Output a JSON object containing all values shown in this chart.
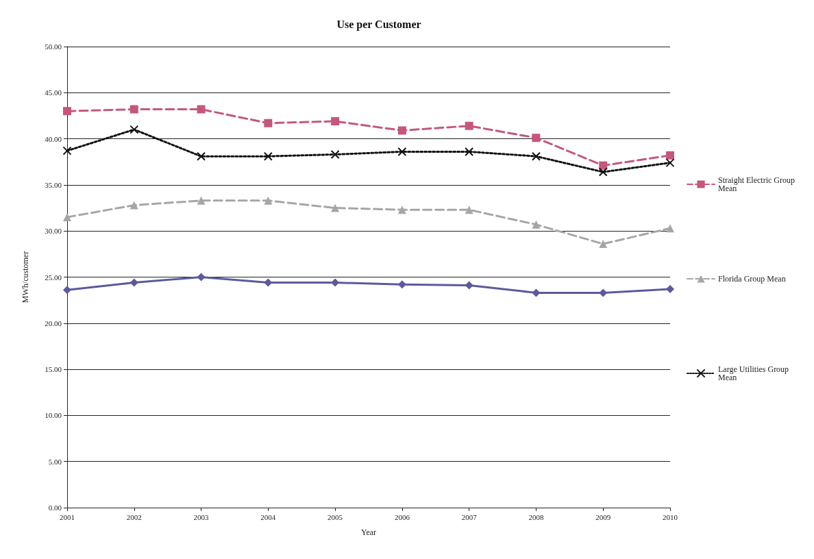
{
  "chart_data": {
    "type": "line",
    "title": "Use per Customer",
    "xlabel": "Year",
    "ylabel": "MWh/customer",
    "categories": [
      "2001",
      "2002",
      "2003",
      "2004",
      "2005",
      "2006",
      "2007",
      "2008",
      "2009",
      "2010"
    ],
    "ylim": [
      0,
      50
    ],
    "yticks": [
      {
        "value": 0,
        "label": "0.00"
      },
      {
        "value": 5,
        "label": "5.00"
      },
      {
        "value": 10,
        "label": "10.00"
      },
      {
        "value": 15,
        "label": "15.00"
      },
      {
        "value": 20,
        "label": "20.00"
      },
      {
        "value": 25,
        "label": "25.00"
      },
      {
        "value": 30,
        "label": "30.00"
      },
      {
        "value": 35,
        "label": "35.00"
      },
      {
        "value": 40,
        "label": "40.00"
      },
      {
        "value": 45,
        "label": "45.00"
      },
      {
        "value": 50,
        "label": "50.00"
      }
    ],
    "grid": "y",
    "legend": "right",
    "series": [
      {
        "color": "#5b5a9c",
        "marker": "diamond",
        "line_style": "solid",
        "values": [
          23.6,
          24.4,
          25.0,
          24.4,
          24.4,
          24.2,
          24.1,
          23.3,
          23.3,
          23.7
        ]
      },
      {
        "name": "Straight Electric Group Mean",
        "color": "#c4587a",
        "marker": "square",
        "line_style": "dashed",
        "values": [
          43.0,
          43.2,
          43.2,
          41.7,
          41.9,
          40.9,
          41.4,
          40.1,
          37.1,
          38.2
        ]
      },
      {
        "name": "Florida Group Mean",
        "color": "#a6a6a6",
        "marker": "triangle",
        "line_style": "dashed",
        "values": [
          31.5,
          32.8,
          33.3,
          33.3,
          32.5,
          32.3,
          32.3,
          30.7,
          28.6,
          30.3
        ]
      },
      {
        "name": "Large Utilities Group Mean",
        "color": "#111111",
        "marker": "cross",
        "line_style": "dotted",
        "values": [
          38.7,
          41.0,
          38.1,
          38.1,
          38.3,
          38.6,
          38.6,
          38.1,
          36.4,
          37.4
        ]
      }
    ]
  }
}
